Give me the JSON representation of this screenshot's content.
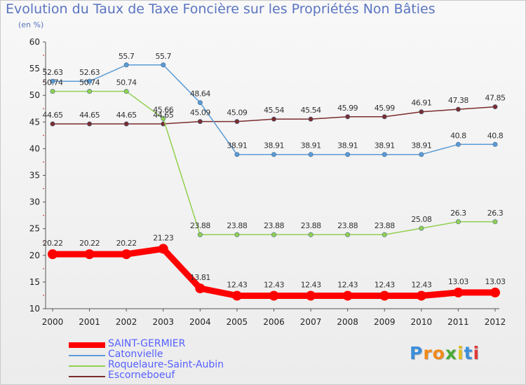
{
  "title": "Evolution du Taux de Taxe Foncière sur les Propriétés Non Bâties",
  "subtitle": "(en %)",
  "logo": {
    "letters": [
      "P",
      "r",
      "o",
      "x",
      "i",
      "t",
      "i"
    ],
    "colors": [
      "#3b8ed8",
      "#f08a1c",
      "#f08a1c",
      "#4aaa36",
      "#e0c020",
      "#3b8ed8",
      "#e03a3a"
    ]
  },
  "chart_data": {
    "type": "line",
    "title": "Evolution du Taux de Taxe Foncière sur les Propriétés Non Bâties",
    "xlabel": "",
    "ylabel": "(en %)",
    "ylim": [
      10,
      60
    ],
    "yticks": [
      10,
      15,
      20,
      25,
      30,
      35,
      40,
      45,
      50,
      55,
      60
    ],
    "grid": false,
    "legend_position": "bottom-left",
    "categories": [
      "2000",
      "2001",
      "2002",
      "2003",
      "2004",
      "2005",
      "2006",
      "2007",
      "2008",
      "2009",
      "2010",
      "2011",
      "2012"
    ],
    "series": [
      {
        "name": "SAINT-GERMIER",
        "color": "#ff0000",
        "values": [
          20.22,
          20.22,
          20.22,
          21.23,
          13.81,
          12.43,
          12.43,
          12.43,
          12.43,
          12.43,
          12.43,
          13.03,
          13.03
        ],
        "labels": [
          "20.22",
          "20.22",
          "20.22",
          "21.23",
          "13.81",
          "12.43",
          "12.43",
          "12.43",
          "12.43",
          "12.43",
          "12.43",
          "13.03",
          "13.03"
        ]
      },
      {
        "name": "Catonvielle",
        "color": "#5b9bd5",
        "values": [
          52.63,
          52.63,
          55.7,
          55.7,
          48.64,
          38.91,
          38.91,
          38.91,
          38.91,
          38.91,
          38.91,
          40.8,
          40.8
        ],
        "labels": [
          "52.63",
          "52.63",
          "55.7",
          "55.7",
          "48.64",
          "38.91",
          "38.91",
          "38.91",
          "38.91",
          "38.91",
          "38.91",
          "40.8",
          "40.8"
        ]
      },
      {
        "name": "Roquelaure-Saint-Aubin",
        "color": "#92d050",
        "values": [
          50.74,
          50.74,
          50.74,
          45.66,
          23.88,
          23.88,
          23.88,
          23.88,
          23.88,
          23.88,
          25.08,
          26.3,
          26.3
        ],
        "labels": [
          "50.74",
          "50.74",
          "50.74",
          "45.66",
          "23.88",
          "23.88",
          "23.88",
          "23.88",
          "23.88",
          "23.88",
          "25.08",
          "26.3",
          "26.3"
        ]
      },
      {
        "name": "Escorneboeuf",
        "color": "#7b2c2c",
        "values": [
          44.65,
          44.65,
          44.65,
          44.65,
          45.09,
          45.09,
          45.54,
          45.54,
          45.99,
          45.99,
          46.91,
          47.38,
          47.85
        ],
        "labels": [
          "44.65",
          "44.65",
          "44.65",
          "44.65",
          "45.09",
          "45.09",
          "45.54",
          "45.54",
          "45.99",
          "45.99",
          "46.91",
          "47.38",
          "47.85"
        ]
      }
    ]
  }
}
